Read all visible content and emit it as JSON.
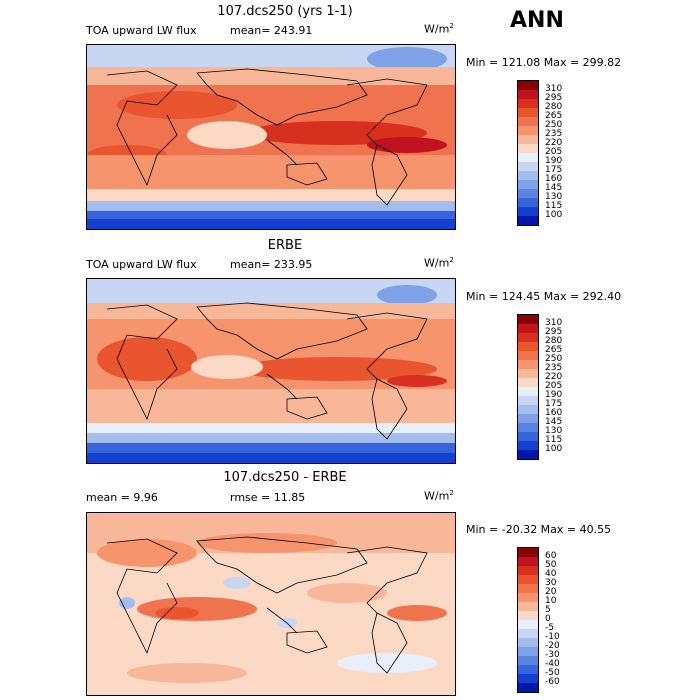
{
  "season": "ANN",
  "panels": [
    {
      "title": "107.dcs250 (yrs 1-1)",
      "left_text": "TOA upward LW flux",
      "mid_text": "mean= 243.91",
      "units": "W/m",
      "units_sup": "2",
      "minmax": "Min = 121.08 Max = 299.82",
      "levels": [
        "310",
        "295",
        "280",
        "265",
        "250",
        "235",
        "220",
        "205",
        "190",
        "175",
        "160",
        "145",
        "130",
        "115",
        "100"
      ],
      "colors": [
        "#8b0000",
        "#c1121f",
        "#d7301f",
        "#e8552e",
        "#f07350",
        "#f6946e",
        "#f9b79a",
        "#fcd9c4",
        "#e8eefa",
        "#c6d6f3",
        "#a3bdee",
        "#7fa1e8",
        "#5b84e2",
        "#3763db",
        "#1340cf",
        "#0018a8"
      ]
    },
    {
      "title": "ERBE",
      "left_text": "TOA upward LW flux",
      "mid_text": "mean= 233.95",
      "units": "W/m",
      "units_sup": "2",
      "minmax": "Min = 124.45 Max = 292.40",
      "levels": [
        "310",
        "295",
        "280",
        "265",
        "250",
        "235",
        "220",
        "205",
        "190",
        "175",
        "160",
        "145",
        "130",
        "115",
        "100"
      ],
      "colors": [
        "#8b0000",
        "#c1121f",
        "#d7301f",
        "#e8552e",
        "#f07350",
        "#f6946e",
        "#f9b79a",
        "#fcd9c4",
        "#e8eefa",
        "#c6d6f3",
        "#a3bdee",
        "#7fa1e8",
        "#5b84e2",
        "#3763db",
        "#1340cf",
        "#0018a8"
      ]
    },
    {
      "title": "107.dcs250 - ERBE",
      "left_text": "mean =   9.96",
      "mid_text": "rmse =  11.85",
      "units": "W/m",
      "units_sup": "2",
      "minmax": "Min = -20.32 Max =  40.55",
      "levels": [
        "60",
        "50",
        "40",
        "30",
        "20",
        "10",
        "5",
        "0",
        "-5",
        "-10",
        "-20",
        "-30",
        "-40",
        "-50",
        "-60"
      ],
      "colors": [
        "#8b0000",
        "#c1121f",
        "#d7301f",
        "#e8552e",
        "#f07350",
        "#f6946e",
        "#f9b79a",
        "#fcd9c4",
        "#e8eefa",
        "#c6d6f3",
        "#a3bdee",
        "#7fa1e8",
        "#5b84e2",
        "#3763db",
        "#1340cf",
        "#0018a8"
      ]
    }
  ]
}
